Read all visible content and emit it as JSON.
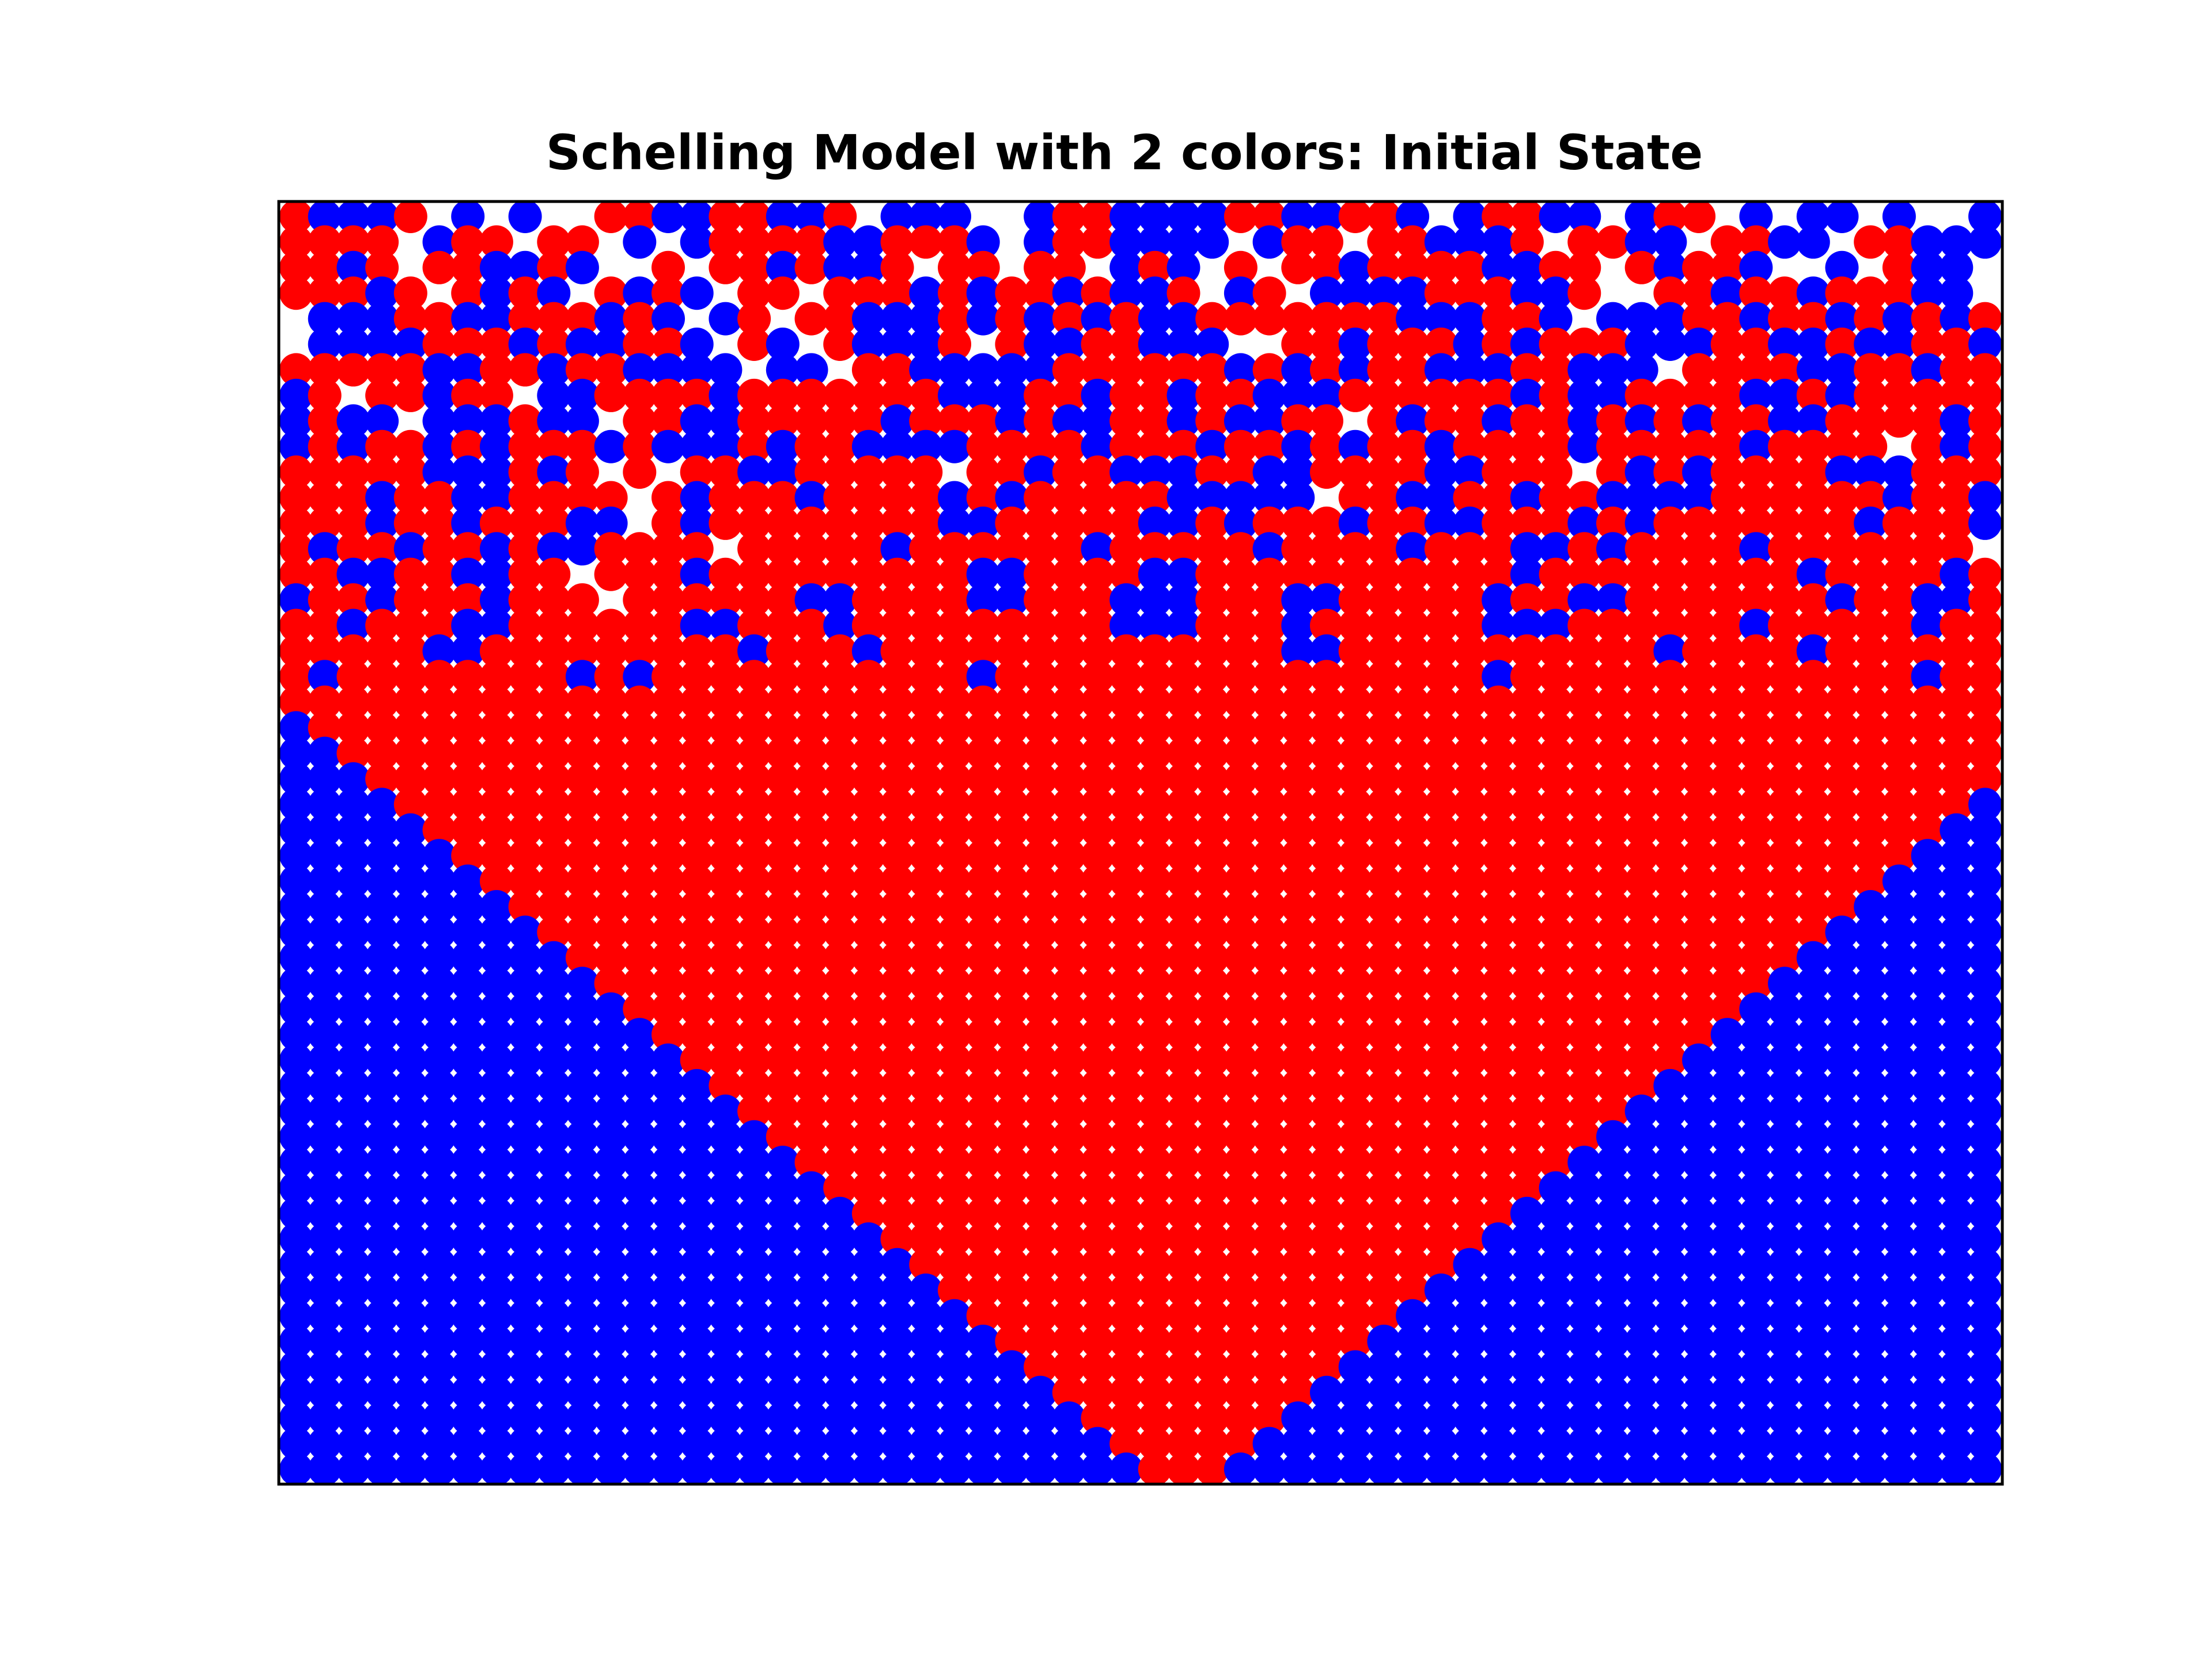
{
  "chart_data": {
    "type": "scatter",
    "title": "Schelling Model with 2 colors: Initial State",
    "xlabel": "",
    "ylabel": "",
    "grid": false,
    "legend": "none",
    "axis_ticks": "hidden",
    "series": [
      {
        "color": "#ff0000",
        "marker": "circle"
      },
      {
        "color": "#0000ff",
        "marker": "circle"
      }
    ],
    "rows": [
      "RBBBR.B.B..RRBBRRBBR.BBB..BRRBBBBRRBBRRB.BRRBB.BRR.B.BB.B..B",
      "RRRR.BRR.RR.B.BRRRRBBRRRB.BRRBBBB.BRR.RRBBBR.RRBB.RRBB.RRBBB",
      "RRBR.RRBBRB..R.RRBRBBR.RR.RR.BRB.R.RRBRRRRBBRR.RBRRB..B.RBB.",
      "RRRBR.RBRB.RBRB.RR.RRRBRBRRBRBBR.BR.BBBBRRRBBR..RRBRRBRRRBB.",
      ".BBBRRBBRRRBRB.BR.RRBBBRBRBRBRBBRRRRRRRBBBRRB.BBBRRBRRBRBRBR",
      ".BBBBRRRBRBBRRB.RB.RBBBR.RBBRRBBB..RRBRRRBRBRRRBBBRRBBRBBRRB",
      "RRRRRBBRRBRRBBBB.BB.RRBBBBBRRRRRRBRBRBRRBBBRRBBB.RRRRBBRRBRR",
      "BR.RRBRR.BBRRRRBRRRRRRRBBBRRBRRBRRBBBRRRRRRBRBBRRRRBBRBRRRRR",
      "BRBB.BBBRBB.RRBBRRRRRBRRRBRBBRRBRBBRR.RBRRBRRBRBRBRRBBRRRRBR",
      "BRBRRBRBRRRBRBBBRBRRBBBBRRRRBRRRBRRBRBRRBRRRRBRRRRRBRRRR.RBR",
      "RRRRRBBBRBR.R.RRBBRRRRR.RRBRRBBBRRBBRRRRBBRRR.RBRBRRRRBBBRRR",
      "RRRBRRBBRRRR.RBRRRBRRRRBRBRRRRRBBBBB.RRBBRRBRRBBBBRRRRRRBRRB",
      "RRRBRRBRRRBB.RBRRRRRRRRBBRRRRRBBRBRRRBRRBBRRRBRBRRRRRRRBRRRB",
      "RBRRBRRBRBBRRRR.RRRRRBRRRRRRBRRRRRBRRRRBRRRBBRBRRRRBRRRRRRR.",
      "RRBBRRBBRR.RRRBRRRRRRRRRBBRRRRBBRRRRRRRRRRRBRRRRRRRRRBRRRRBR",
      "BRRBRRRBRRR.RRRRRRBBRRRRBBRRRBBBRRRBBRRRRRBRRBBRRRRRRRBRRBBR",
      "RRBRRRBBRRRRRRBBRRRBRRRRRRRRRBBBRRRBRRRRRRBBBRRRRRRBRRRRRBRR",
      "RRRRRBBRRRRRRRRRBRRRBRRRRRRRRRRRRRRBBRRRRRRRRRRRBRRRRBRRRRRR",
      "RBRRRRRRRRBRBRRRRRRRRRRRBRRRRRRRRRRRRRRRRRBRRRRRRRRRRRRRRBRR",
      "RRRRRRRRRRRRRRRRRRRRRRRRRRRRRRRRRRRRRRRRRRRRRRRRRRRRRRRRRRRR",
      "BRRRRRRRRRRRRRRRRRRRRRRRRRRRRRRRRRRRRRRRRRRRRRRRRRRRRRRRRRRR",
      "BBRRRRRRRRRRRRRRRRRRRRRRRRRRRRRRRRRRRRRRRRRRRRRRRRRRRRRRRRRR",
      "BBBRRRRRRRRRRRRRRRRRRRRRRRRRRRRRRRRRRRRRRRRRRRRRRRRRRRRRRRRR",
      "BBBBRRRRRRRRRRRRRRRRRRRRRRRRRRRRRRRRRRRRRRRRRRRRRRRRRRRRRRRB",
      "BBBBBRRRRRRRRRRRRRRRRRRRRRRRRRRRRRRRRRRRRRRRRRRRRRRRRRRRRRBB",
      "BBBBBBRRRRRRRRRRRRRRRRRRRRRRRRRRRRRRRRRRRRRRRRRRRRRRRRRRRBBB",
      "BBBBBBBRRRRRRRRRRRRRRRRRRRRRRRRRRRRRRRRRRRRRRRRRRRRRRRRRBBBB",
      "BBBBBBBBRRRRRRRRRRRRRRRRRRRRRRRRRRRRRRRRRRRRRRRRRRRRRRRBBBBB",
      "BBBBBBBBBRRRRRRRRRRRRRRRRRRRRRRRRRRRRRRRRRRRRRRRRRRRRRBBBBBB",
      "BBBBBBBBBBRRRRRRRRRRRRRRRRRRRRRRRRRRRRRRRRRRRRRRRRRRRBBBBBBB",
      "BBBBBBBBBBBRRRRRRRRRRRRRRRRRRRRRRRRRRRRRRRRRRRRRRRRRBBBBBBBB",
      "BBBBBBBBBBBBRRRRRRRRRRRRRRRRRRRRRRRRRRRRRRRRRRRRRRRBBBBBBBBB",
      "BBBBBBBBBBBBBRRRRRRRRRRRRRRRRRRRRRRRRRRRRRRRRRRRRRBBBBBBBBBB",
      "BBBBBBBBBBBBBBRRRRRRRRRRRRRRRRRRRRRRRRRRRRRRRRRRRBBBBBBBBBBB",
      "BBBBBBBBBBBBBBBRRRRRRRRRRRRRRRRRRRRRRRRRRRRRRRRRBBBBBBBBBBBB",
      "BBBBBBBBBBBBBBBBRRRRRRRRRRRRRRRRRRRRRRRRRRRRRRRBBBBBBBBBBBBB",
      "BBBBBBBBBBBBBBBBBRRRRRRRRRRRRRRRRRRRRRRRRRRRRRBBBBBBBBBBBBBB",
      "BBBBBBBBBBBBBBBBBBRRRRRRRRRRRRRRRRRRRRRRRRRRRBBBBBBBBBBBBBBB",
      "BBBBBBBBBBBBBBBBBBBRRRRRRRRRRRRRRRRRRRRRRRRRBBBBBBBBBBBBBBBB",
      "BBBBBBBBBBBBBBBBBBBBRRRRRRRRRRRRRRRRRRRRRRRBBBBBBBBBBBBBBBBB",
      "BBBBBBBBBBBBBBBBBBBBBRRRRRRRRRRRRRRRRRRRRRBBBBBBBBBBBBBBBBBB",
      "BBBBBBBBBBBBBBBBBBBBBBRRRRRRRRRRRRRRRRRRRBBBBBBBBBBBBBBBBBBB",
      "BBBBBBBBBBBBBBBBBBBBBBBRRRRRRRRRRRRRRRRRBBBBBBBBBBBBBBBBBBBB",
      "BBBBBBBBBBBBBBBBBBBBBBBBRRRRRRRRRRRRRRRBBBBBBBBBBBBBBBBBBBBB",
      "BBBBBBBBBBBBBBBBBBBBBBBBBRRRRRRRRRRRRRBBBBBBBBBBBBBBBBBBBBBB",
      "BBBBBBBBBBBBBBBBBBBBBBBBBBRRRRRRRRRRRBBBBBBBBBBBBBBBBBBBBBBB",
      "BBBBBBBBBBBBBBBBBBBBBBBBBBBRRRRRRRRRBBBBBBBBBBBBBBBBBBBBBBBB",
      "BBBBBBBBBBBBBBBBBBBBBBBBBBBBRRRRRRRBBBBBBBBBBBBBBBBBBBBBBBBB",
      "BBBBBBBBBBBBBBBBBBBBBBBBBBBBBRRRRRBBBBBBBBBBBBBBBBBBBBBBBBBB",
      "BBBBBBBBBBBBBBBBBBBBBBBBBBBBBBRRRBBBBBBBBBBBBBBBBBBBBBBBBBBB"
    ]
  }
}
